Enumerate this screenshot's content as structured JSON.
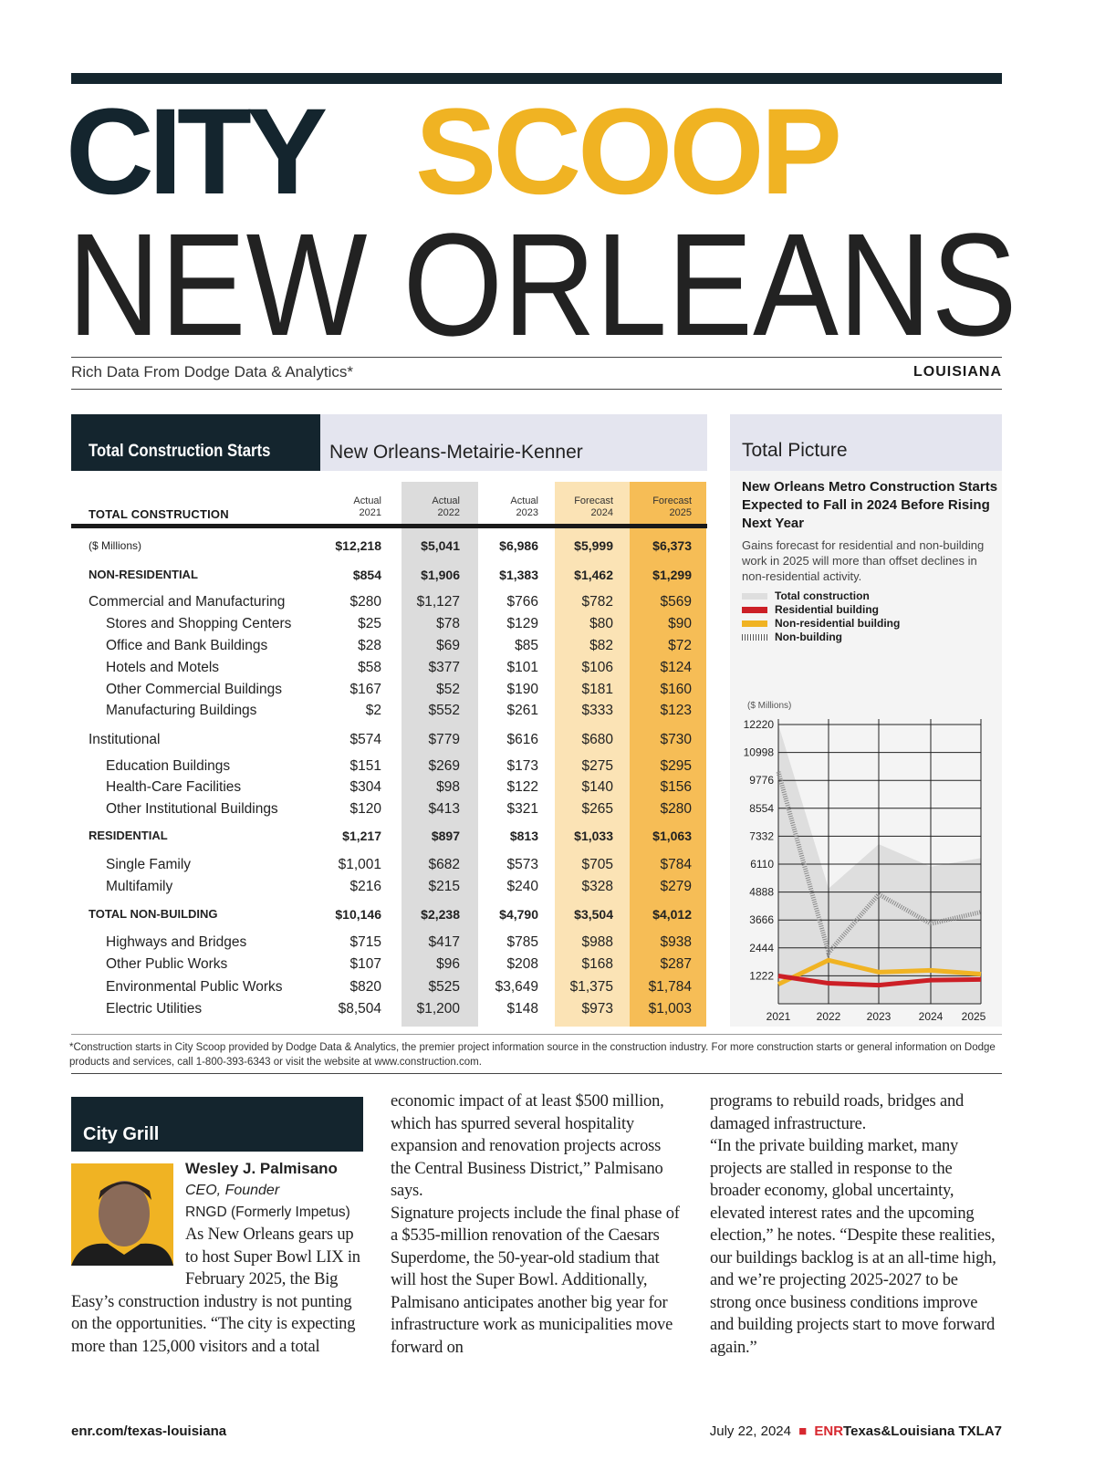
{
  "header": {
    "city": "CITY",
    "scoop": "SCOOP",
    "city_name": "NEW ORLEANS",
    "subtitle": "Rich Data From Dodge Data & Analytics*",
    "state": "LOUISIANA"
  },
  "table": {
    "title": "Total Construction Starts",
    "region": "New Orleans-Metairie-Kenner",
    "label": "TOTAL CONSTRUCTION",
    "columns": [
      [
        "Actual",
        "2021"
      ],
      [
        "Actual",
        "2022"
      ],
      [
        "Actual",
        "2023"
      ],
      [
        "Forecast",
        "2024"
      ],
      [
        "Forecast",
        "2025"
      ]
    ],
    "rows": [
      {
        "label": "($ Millions)",
        "type": "small-total",
        "values": [
          "$12,218",
          "$5,041",
          "$6,986",
          "$5,999",
          "$6,373"
        ]
      },
      {
        "label": "NON-RESIDENTIAL",
        "type": "cap",
        "values": [
          "$854",
          "$1,906",
          "$1,383",
          "$1,462",
          "$1,299"
        ]
      },
      {
        "label": "Commercial and Manufacturing",
        "type": "group",
        "values": [
          "$280",
          "$1,127",
          "$766",
          "$782",
          "$569"
        ]
      },
      {
        "label": "Stores and Shopping Centers",
        "type": "sub",
        "values": [
          "$25",
          "$78",
          "$129",
          "$80",
          "$90"
        ]
      },
      {
        "label": "Office and Bank Buildings",
        "type": "sub",
        "values": [
          "$28",
          "$69",
          "$85",
          "$82",
          "$72"
        ]
      },
      {
        "label": "Hotels and Motels",
        "type": "sub",
        "values": [
          "$58",
          "$377",
          "$101",
          "$106",
          "$124"
        ]
      },
      {
        "label": "Other Commercial Buildings",
        "type": "sub",
        "values": [
          "$167",
          "$52",
          "$190",
          "$181",
          "$160"
        ]
      },
      {
        "label": "Manufacturing Buildings",
        "type": "sub",
        "values": [
          "$2",
          "$552",
          "$261",
          "$333",
          "$123"
        ]
      },
      {
        "label": "Institutional",
        "type": "group",
        "values": [
          "$574",
          "$779",
          "$616",
          "$680",
          "$730"
        ]
      },
      {
        "label": "Education Buildings",
        "type": "sub",
        "values": [
          "$151",
          "$269",
          "$173",
          "$275",
          "$295"
        ]
      },
      {
        "label": "Health-Care Facilities",
        "type": "sub",
        "values": [
          "$304",
          "$98",
          "$122",
          "$140",
          "$156"
        ]
      },
      {
        "label": "Other Institutional Buildings",
        "type": "sub",
        "values": [
          "$120",
          "$413",
          "$321",
          "$265",
          "$280"
        ]
      },
      {
        "label": "RESIDENTIAL",
        "type": "cap",
        "values": [
          "$1,217",
          "$897",
          "$813",
          "$1,033",
          "$1,063"
        ]
      },
      {
        "label": "Single Family",
        "type": "sub",
        "values": [
          "$1,001",
          "$682",
          "$573",
          "$705",
          "$784"
        ]
      },
      {
        "label": "Multifamily",
        "type": "sub",
        "values": [
          "$216",
          "$215",
          "$240",
          "$328",
          "$279"
        ]
      },
      {
        "label": "TOTAL NON-BUILDING",
        "type": "cap",
        "values": [
          "$10,146",
          "$2,238",
          "$4,790",
          "$3,504",
          "$4,012"
        ]
      },
      {
        "label": "Highways and Bridges",
        "type": "sub",
        "values": [
          "$715",
          "$417",
          "$785",
          "$988",
          "$938"
        ]
      },
      {
        "label": "Other Public Works",
        "type": "sub",
        "values": [
          "$107",
          "$96",
          "$208",
          "$168",
          "$287"
        ]
      },
      {
        "label": "Environmental Public Works",
        "type": "sub",
        "values": [
          "$820",
          "$525",
          "$3,649",
          "$1,375",
          "$1,784"
        ]
      },
      {
        "label": "Electric Utilities",
        "type": "sub",
        "values": [
          "$8,504",
          "$1,200",
          "$148",
          "$973",
          "$1,003"
        ]
      }
    ]
  },
  "total_picture": {
    "head": "Total Picture",
    "title": "New Orleans Metro Construction Starts Expected to Fall in 2024 Before Rising Next Year",
    "desc": "Gains forecast for residential and non-building work in 2025 will more than offset declines in non-residential activity.",
    "legend": [
      "Total construction",
      "Residential building",
      "Non-residential building",
      "Non-building"
    ]
  },
  "chart_data": {
    "type": "line",
    "ylabel": "($ Millions)",
    "ylim": [
      0,
      12220
    ],
    "yticks": [
      1222,
      2444,
      3666,
      4888,
      6110,
      7332,
      8554,
      9776,
      10998,
      12220
    ],
    "x": [
      "2021",
      "2022",
      "2023",
      "2024",
      "2025"
    ],
    "series": [
      {
        "name": "Total construction",
        "style": "area",
        "color": "#dedede",
        "values": [
          12218,
          5041,
          6986,
          5999,
          6373
        ]
      },
      {
        "name": "Non-building",
        "style": "hatched",
        "color": "#888888",
        "values": [
          10146,
          2238,
          4790,
          3504,
          4012
        ]
      },
      {
        "name": "Non-residential building",
        "style": "line",
        "color": "#f0b323",
        "values": [
          854,
          1906,
          1383,
          1462,
          1299
        ]
      },
      {
        "name": "Residential building",
        "style": "line",
        "color": "#cc1f26",
        "values": [
          1217,
          897,
          813,
          1033,
          1063
        ]
      }
    ]
  },
  "footnote": "*Construction starts in City Scoop provided by Dodge Data & Analytics, the premier project information source in the construction industry. For more construction starts or general information on Dodge products and services, call 1-800-393-6343 or visit the website at www.construction.com.",
  "article": {
    "section": "City Grill",
    "name": "Wesley J. Palmisano",
    "role": "CEO, Founder",
    "company": "RNGD (Formerly Impetus)",
    "col1a": "As New Orleans gears up to host Super Bowl",
    "col1b": "LIX in February 2025, the Big Easy’s construction industry is not punting on the opportunities. “The city is expecting more than 125,000 visitors and a total",
    "col2": "economic impact of at least $500 million, which has spurred several hospitality expansion and renovation projects across the Central Business District,” Palmisano says.\n    Signature projects include the final phase of a $535-million renovation of the Caesars Superdome, the 50-year-old stadium that will host the Super Bowl. Additionally, Palmisano anticipates another big year for infrastructure work as municipalities move forward on",
    "col3": "programs to rebuild roads, bridges and damaged infrastructure.\n    “In the private building market, many projects are stalled in response to the broader economy, global uncertainty, elevated interest rates and the upcoming election,” he notes. “Despite these realities, our buildings backlog is at an all-time high, and we’re projecting 2025-2027 to be strong once business conditions improve and building projects start to move forward again.”"
  },
  "footer": {
    "url": "enr.com/texas-louisiana",
    "date": "July 22, 2024",
    "brand": "ENR",
    "brand2": "Texas&Louisiana",
    "page": "TXLA7",
    "accent": "#d7282f"
  }
}
